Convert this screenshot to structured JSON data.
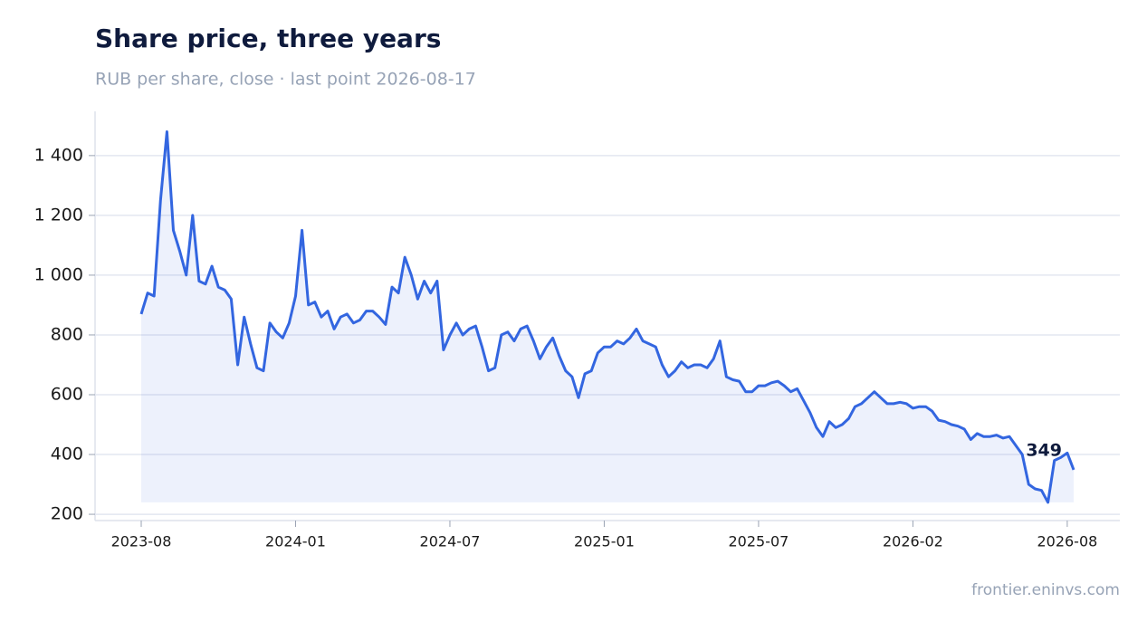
{
  "chart_data": {
    "type": "line",
    "title": "Share price, three years",
    "subtitle": "RUB per share, close · last point 2026-08-17",
    "source": "frontier.eninvs.com",
    "categories": [
      "2023-08",
      null,
      null,
      null,
      null,
      null,
      null,
      null,
      null,
      null,
      null,
      null,
      null,
      null,
      null,
      null,
      null,
      null,
      null,
      null,
      null,
      null,
      null,
      null,
      "2024-01",
      null,
      null,
      null,
      null,
      null,
      null,
      null,
      null,
      null,
      null,
      null,
      null,
      null,
      null,
      null,
      null,
      null,
      null,
      null,
      null,
      null,
      null,
      null,
      "2024-07",
      null,
      null,
      null,
      null,
      null,
      null,
      null,
      null,
      null,
      null,
      null,
      null,
      null,
      null,
      null,
      null,
      null,
      null,
      null,
      null,
      null,
      null,
      null,
      "2025-01",
      null,
      null,
      null,
      null,
      null,
      null,
      null,
      null,
      null,
      null,
      null,
      null,
      null,
      null,
      null,
      null,
      null,
      null,
      null,
      null,
      null,
      null,
      null,
      "2025-07",
      null,
      null,
      null,
      null,
      null,
      null,
      null,
      null,
      null,
      null,
      null,
      null,
      null,
      null,
      null,
      null,
      null,
      null,
      null,
      null,
      null,
      null,
      null,
      "2026-02",
      null,
      null,
      null,
      null,
      null,
      null,
      null,
      null,
      null,
      null,
      null,
      null,
      null,
      null,
      null,
      null,
      null,
      null,
      null,
      null,
      null,
      null,
      null,
      "2026-08",
      null
    ],
    "series": [
      {
        "name": "Close",
        "color": "#3366e0",
        "values": [
          870,
          940,
          930,
          1250,
          1480,
          1150,
          1080,
          1000,
          1200,
          980,
          970,
          1030,
          960,
          950,
          920,
          700,
          860,
          770,
          690,
          680,
          840,
          810,
          790,
          840,
          930,
          1150,
          900,
          910,
          860,
          880,
          820,
          860,
          870,
          840,
          850,
          880,
          880,
          860,
          835,
          960,
          940,
          1060,
          1000,
          920,
          980,
          940,
          980,
          750,
          800,
          840,
          800,
          820,
          830,
          760,
          680,
          690,
          800,
          810,
          780,
          820,
          830,
          780,
          720,
          760,
          790,
          730,
          680,
          660,
          590,
          670,
          680,
          740,
          760,
          760,
          780,
          770,
          790,
          820,
          780,
          770,
          760,
          700,
          660,
          680,
          710,
          690,
          700,
          700,
          690,
          720,
          780,
          660,
          650,
          645,
          610,
          610,
          630,
          630,
          640,
          645,
          630,
          610,
          620,
          580,
          540,
          490,
          460,
          510,
          490,
          500,
          520,
          560,
          570,
          590,
          610,
          590,
          570,
          570,
          575,
          570,
          555,
          560,
          560,
          545,
          515,
          510,
          500,
          495,
          485,
          450,
          470,
          460,
          460,
          465,
          455,
          460,
          430,
          400,
          300,
          285,
          280,
          240,
          380,
          390,
          405,
          349
        ]
      }
    ],
    "ylim": [
      179,
      1548
    ],
    "yticks": [
      200,
      400,
      600,
      800,
      {
        "value": 1000,
        "label": "1 000"
      },
      {
        "value": 1200,
        "label": "1 200"
      },
      {
        "value": 1400,
        "label": "1 400"
      }
    ],
    "grid": true
  }
}
